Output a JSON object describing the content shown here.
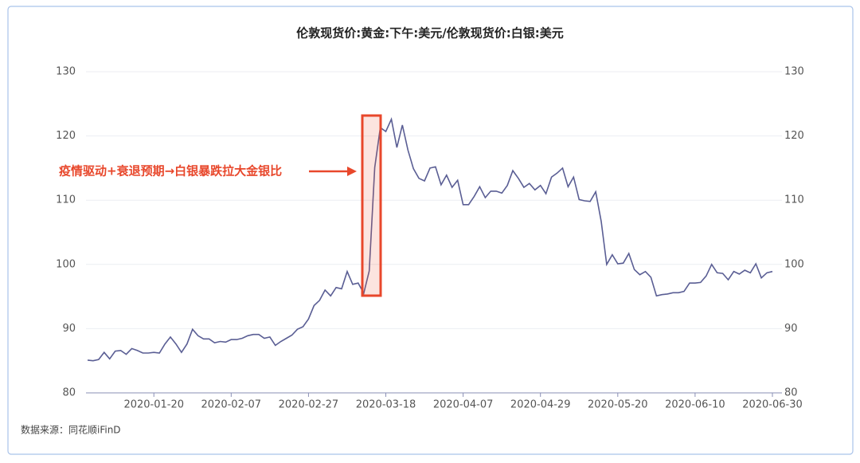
{
  "chart_data": {
    "type": "line",
    "title": "伦敦现货价:黄金:下午:美元/伦敦现货价:白银:美元",
    "annotation": "疫情驱动+衰退预期→白银暴跌拉大金银比",
    "source": "数据来源：同花顺iFinD",
    "categories": [
      null,
      null,
      null,
      null,
      null,
      null,
      null,
      null,
      null,
      null,
      null,
      null,
      "2020-01-20",
      null,
      null,
      null,
      null,
      null,
      null,
      null,
      null,
      null,
      null,
      null,
      null,
      null,
      "2020-02-07",
      null,
      null,
      null,
      null,
      null,
      null,
      null,
      null,
      null,
      null,
      null,
      null,
      null,
      "2020-02-27",
      null,
      null,
      null,
      null,
      null,
      null,
      null,
      null,
      null,
      null,
      null,
      null,
      null,
      "2020-03-18",
      null,
      null,
      null,
      null,
      null,
      null,
      null,
      null,
      null,
      null,
      null,
      null,
      null,
      "2020-04-07",
      null,
      null,
      null,
      null,
      null,
      null,
      null,
      null,
      null,
      null,
      null,
      null,
      null,
      "2020-04-29",
      null,
      null,
      null,
      null,
      null,
      null,
      null,
      null,
      null,
      null,
      null,
      null,
      null,
      "2020-05-20",
      null,
      null,
      null,
      null,
      null,
      null,
      null,
      null,
      null,
      null,
      null,
      null,
      null,
      "2020-06-10",
      null,
      null,
      null,
      null,
      null,
      null,
      null,
      null,
      null,
      null,
      null,
      null,
      null,
      "2020-06-30"
    ],
    "values": [
      85.1,
      85.0,
      85.2,
      86.3,
      85.3,
      86.5,
      86.6,
      86.0,
      86.9,
      86.6,
      86.2,
      86.2,
      86.3,
      86.2,
      87.6,
      88.7,
      87.6,
      86.3,
      87.6,
      89.9,
      88.9,
      88.4,
      88.4,
      87.8,
      88.0,
      87.9,
      88.3,
      88.3,
      88.5,
      88.9,
      89.1,
      89.1,
      88.5,
      88.7,
      87.4,
      88.0,
      88.5,
      89.0,
      89.9,
      90.3,
      91.5,
      93.6,
      94.4,
      96.0,
      95.1,
      96.4,
      96.2,
      98.9,
      96.9,
      97.1,
      95.5,
      99.0,
      115.1,
      121.3,
      120.7,
      122.6,
      118.2,
      121.7,
      117.8,
      114.9,
      113.4,
      113.0,
      115.0,
      115.2,
      112.4,
      113.9,
      112.0,
      113.1,
      109.3,
      109.3,
      110.6,
      112.1,
      110.4,
      111.4,
      111.4,
      111.1,
      112.3,
      114.6,
      113.4,
      112.0,
      112.6,
      111.6,
      112.3,
      111.0,
      113.6,
      114.2,
      115.0,
      112.1,
      113.6,
      110.1,
      109.9,
      109.8,
      111.3,
      106.7,
      100.0,
      101.5,
      100.1,
      100.2,
      101.7,
      99.2,
      98.4,
      98.9,
      98.0,
      95.1,
      95.3,
      95.4,
      95.6,
      95.6,
      95.8,
      97.1,
      97.1,
      97.2,
      98.2,
      100.0,
      98.7,
      98.6,
      97.6,
      98.9,
      98.5,
      99.1,
      98.7,
      100.1,
      97.9,
      98.7,
      98.9
    ],
    "color": "#5a5e94",
    "ylim": [
      80,
      130
    ],
    "yticks": [
      80,
      90,
      100,
      110,
      120,
      130
    ],
    "y2lim": [
      80,
      130
    ],
    "y2ticks": [
      80,
      90,
      100,
      110,
      120,
      130
    ],
    "grid": true
  }
}
